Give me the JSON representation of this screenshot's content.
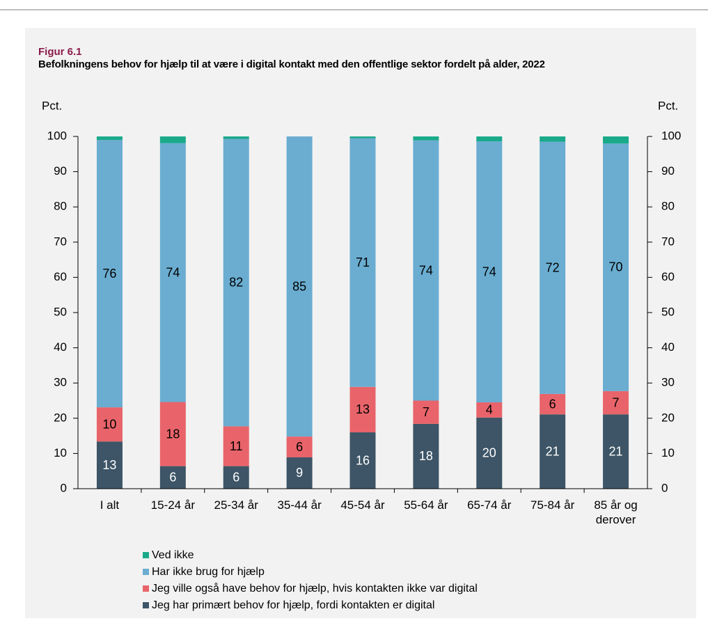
{
  "chart_data": {
    "type": "stacked-bar",
    "figure_label": "Figur 6.1",
    "title": "Befolkningens behov for hjælp til at være i digital kontakt med den offentlige sektor fordelt på alder, 2022",
    "y_label": "Pct.",
    "y2_label": "Pct.",
    "categories": [
      "I alt",
      "15-24 år",
      "25-34 år",
      "35-44 år",
      "45-54 år",
      "55-64 år",
      "65-74 år",
      "75-84 år",
      "85 år og derover"
    ],
    "series": [
      {
        "name": "Jeg har primært behov for hjælp, fordi kontakten er digital",
        "color": "#3d5566",
        "values": [
          13.4,
          6.4,
          6.4,
          8.9,
          16.0,
          18.4,
          20.2,
          21.1,
          21.1
        ],
        "value_labels": [
          "13",
          "6",
          "6",
          "9",
          "16",
          "18",
          "20",
          "21",
          "21"
        ]
      },
      {
        "name": "Jeg ville også have behov for hjælp, hvis kontakten ikke var digital",
        "color": "#e8646a",
        "values": [
          9.7,
          18.2,
          11.3,
          5.9,
          12.9,
          6.6,
          4.3,
          5.8,
          6.6
        ],
        "value_labels": [
          "10",
          "18",
          "11",
          "6",
          "13",
          "7",
          "4",
          "6",
          "7"
        ]
      },
      {
        "name": "Har ikke brug for hjælp",
        "color": "#6aadd1",
        "values": [
          75.9,
          73.5,
          81.6,
          85.2,
          70.6,
          73.9,
          74.1,
          71.6,
          70.3
        ],
        "value_labels": [
          "76",
          "74",
          "82",
          "85",
          "71",
          "74",
          "74",
          "72",
          "70"
        ]
      },
      {
        "name": "Ved ikke",
        "color": "#1aaa8a",
        "values": [
          1.0,
          1.9,
          0.7,
          0.0,
          0.5,
          1.1,
          1.4,
          1.5,
          2.0
        ]
      }
    ],
    "ylim": [
      0,
      100
    ],
    "yticks": [
      0,
      10,
      20,
      30,
      40,
      50,
      60,
      70,
      80,
      90,
      100
    ],
    "y2lim": [
      0,
      100
    ],
    "y2ticks": [
      0,
      10,
      20,
      30,
      40,
      50,
      60,
      70,
      80,
      90,
      100
    ]
  }
}
